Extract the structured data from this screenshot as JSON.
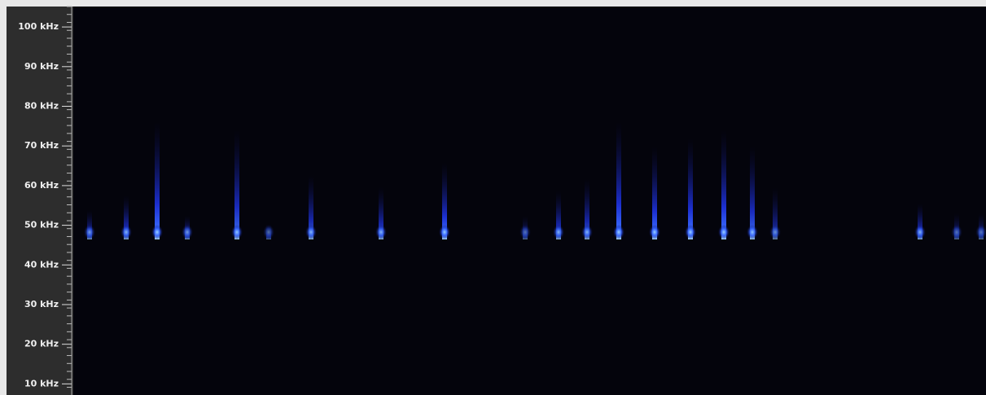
{
  "chart_data": {
    "type": "spectrogram",
    "ylim": [
      7.2,
      106.8
    ],
    "yticks": [
      {
        "value": 100,
        "label": "100 kHz"
      },
      {
        "value": 90,
        "label": "90 kHz"
      },
      {
        "value": 80,
        "label": "80 kHz"
      },
      {
        "value": 70,
        "label": "70 kHz"
      },
      {
        "value": 60,
        "label": "60 kHz"
      },
      {
        "value": 50,
        "label": "50 kHz"
      },
      {
        "value": 40,
        "label": "40 kHz"
      },
      {
        "value": 30,
        "label": "30 kHz"
      },
      {
        "value": 20,
        "label": "20 kHz"
      },
      {
        "value": 10,
        "label": "10 kHz"
      }
    ]
  }
}
